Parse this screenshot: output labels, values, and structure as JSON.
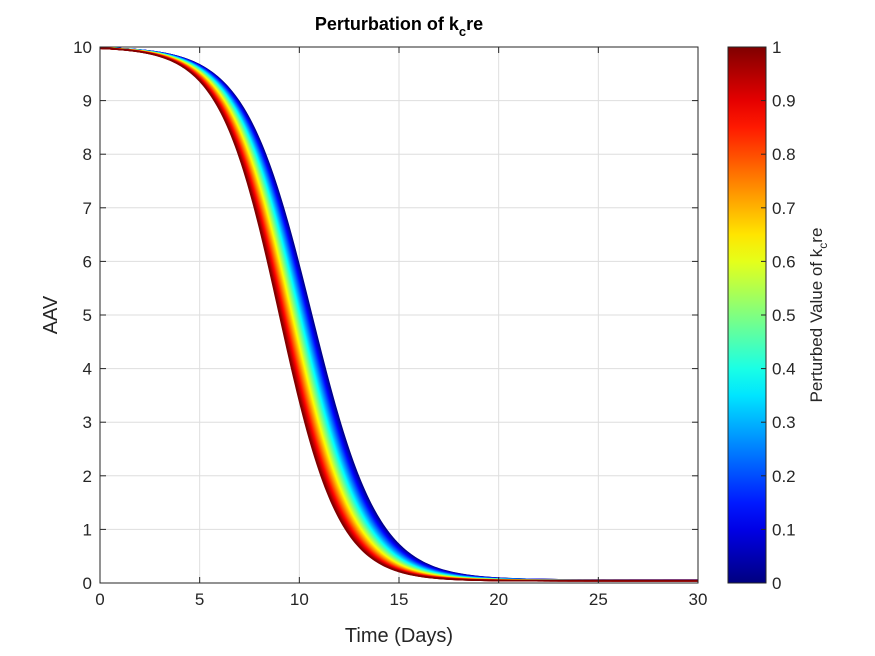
{
  "chart_data": {
    "type": "line",
    "title_main": "Perturbation of k",
    "title_sub": "c",
    "title_tail": "re",
    "xlabel": "Time (Days)",
    "ylabel": "AAV",
    "xlim": [
      0,
      30
    ],
    "ylim": [
      0,
      10
    ],
    "xticks": [
      "0",
      "5",
      "10",
      "15",
      "20",
      "25",
      "30"
    ],
    "yticks": [
      "0",
      "1",
      "2",
      "3",
      "4",
      "5",
      "6",
      "7",
      "8",
      "9",
      "10"
    ],
    "grid": true,
    "colormap": "jet",
    "colorbar": {
      "label_main": "Perturbed Value of k",
      "label_sub": "c",
      "label_tail": "re",
      "ticks": [
        "0",
        "0.1",
        "0.2",
        "0.3",
        "0.4",
        "0.5",
        "0.6",
        "0.7",
        "0.8",
        "0.9",
        "1"
      ],
      "range": [
        0,
        1
      ]
    },
    "series_family": {
      "parameter_min": 0,
      "parameter_max": 1,
      "curve_count": 60,
      "initial_value": 10,
      "midpoint_day_at_param_0": 10.6,
      "midpoint_day_at_param_1": 9.0,
      "steepness": 0.6,
      "final_value": 0.05
    },
    "series_samples": [
      {
        "param": 0,
        "x": [
          0,
          5,
          7.5,
          10,
          12.5,
          15,
          20,
          30
        ],
        "y": [
          10,
          9.9,
          9.5,
          6.3,
          2.7,
          0.55,
          0.12,
          0.06
        ]
      },
      {
        "param": 0.5,
        "x": [
          0,
          5,
          7.5,
          10,
          12.5,
          15,
          20,
          30
        ],
        "y": [
          10,
          9.9,
          9.3,
          5.5,
          1.8,
          0.35,
          0.08,
          0.05
        ]
      },
      {
        "param": 1,
        "x": [
          0,
          5,
          7.5,
          10,
          12.5,
          15,
          20,
          30
        ],
        "y": [
          10,
          9.8,
          8.9,
          3.9,
          1.1,
          0.2,
          0.06,
          0.04
        ]
      }
    ]
  }
}
